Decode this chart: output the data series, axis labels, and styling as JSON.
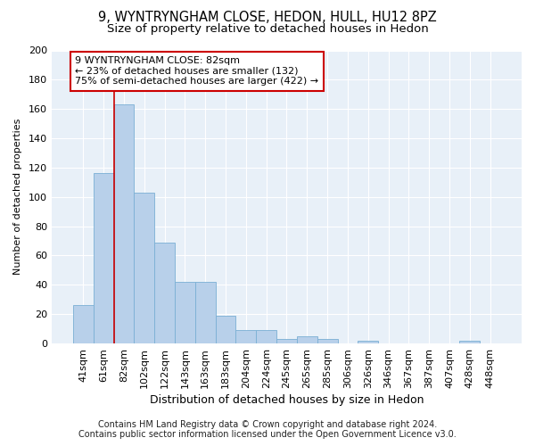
{
  "title": "9, WYNTRYNGHAM CLOSE, HEDON, HULL, HU12 8PZ",
  "subtitle": "Size of property relative to detached houses in Hedon",
  "xlabel": "Distribution of detached houses by size in Hedon",
  "ylabel": "Number of detached properties",
  "bar_color": "#b8d0ea",
  "bar_edge_color": "#7aafd4",
  "background_color": "#e8f0f8",
  "grid_color": "#ffffff",
  "red_line_color": "#cc0000",
  "annotation_text_line1": "9 WYNTRYNGHAM CLOSE: 82sqm",
  "annotation_text_line2": "← 23% of detached houses are smaller (132)",
  "annotation_text_line3": "75% of semi-detached houses are larger (422) →",
  "red_line_x": 1.5,
  "categories": [
    "41sqm",
    "61sqm",
    "82sqm",
    "102sqm",
    "122sqm",
    "143sqm",
    "163sqm",
    "183sqm",
    "204sqm",
    "224sqm",
    "245sqm",
    "265sqm",
    "285sqm",
    "306sqm",
    "326sqm",
    "346sqm",
    "367sqm",
    "387sqm",
    "407sqm",
    "428sqm",
    "448sqm"
  ],
  "values": [
    26,
    116,
    163,
    103,
    69,
    42,
    42,
    19,
    9,
    9,
    3,
    5,
    3,
    0,
    2,
    0,
    0,
    0,
    0,
    2,
    0
  ],
  "ylim": [
    0,
    200
  ],
  "yticks": [
    0,
    20,
    40,
    60,
    80,
    100,
    120,
    140,
    160,
    180,
    200
  ],
  "footer_line1": "Contains HM Land Registry data © Crown copyright and database right 2024.",
  "footer_line2": "Contains public sector information licensed under the Open Government Licence v3.0.",
  "title_fontsize": 10.5,
  "subtitle_fontsize": 9.5,
  "xlabel_fontsize": 9,
  "ylabel_fontsize": 8,
  "tick_fontsize": 8,
  "annotation_fontsize": 8,
  "footer_fontsize": 7
}
